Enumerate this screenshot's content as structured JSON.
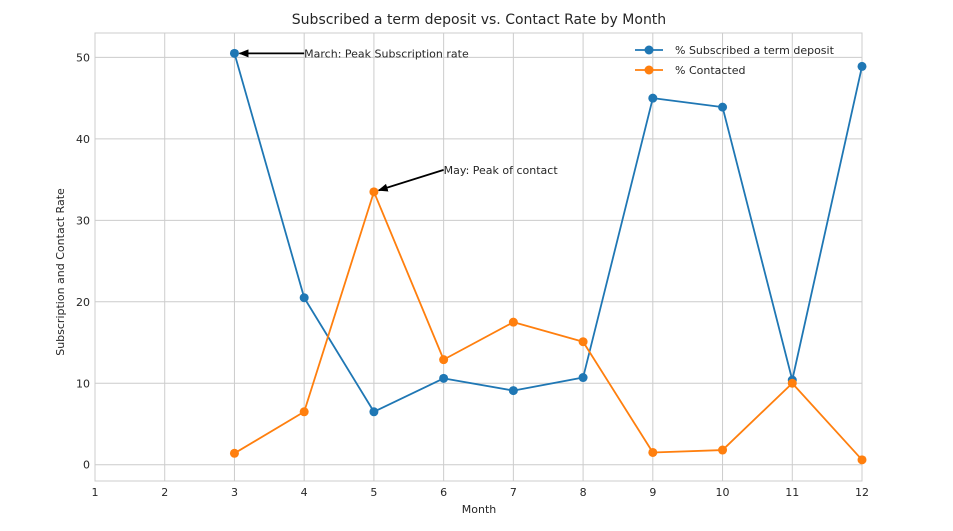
{
  "chart_data": {
    "type": "line",
    "title": "Subscribed a term deposit vs. Contact Rate by Month",
    "xlabel": "Month",
    "ylabel": "Subscription and Contact Rate",
    "xlim": [
      1,
      12
    ],
    "ylim": [
      -2,
      53
    ],
    "xticks": [
      1,
      2,
      3,
      4,
      5,
      6,
      7,
      8,
      9,
      10,
      11,
      12
    ],
    "yticks": [
      0,
      10,
      20,
      30,
      40,
      50
    ],
    "grid": true,
    "legend_position": "top-right",
    "series": [
      {
        "name": "% Subscribed a term deposit",
        "color": "#1f77b4",
        "x": [
          3,
          4,
          5,
          6,
          7,
          8,
          9,
          10,
          11,
          12
        ],
        "values": [
          50.5,
          20.5,
          6.5,
          10.6,
          9.1,
          10.7,
          45.0,
          43.9,
          10.4,
          48.9
        ]
      },
      {
        "name": "% Contacted",
        "color": "#ff7f0e",
        "x": [
          3,
          4,
          5,
          6,
          7,
          8,
          9,
          10,
          11,
          12
        ],
        "values": [
          1.4,
          6.5,
          33.5,
          12.9,
          17.5,
          15.1,
          1.5,
          1.8,
          10.0,
          0.6
        ]
      }
    ],
    "annotations": [
      {
        "text": "March: Peak Subscription rate",
        "target_x": 3,
        "target_y": 50.5,
        "text_x": 4,
        "text_y": 50.5
      },
      {
        "text": "May: Peak of contact",
        "target_x": 5,
        "target_y": 33.5,
        "text_x": 6,
        "text_y": 36.2
      }
    ]
  }
}
